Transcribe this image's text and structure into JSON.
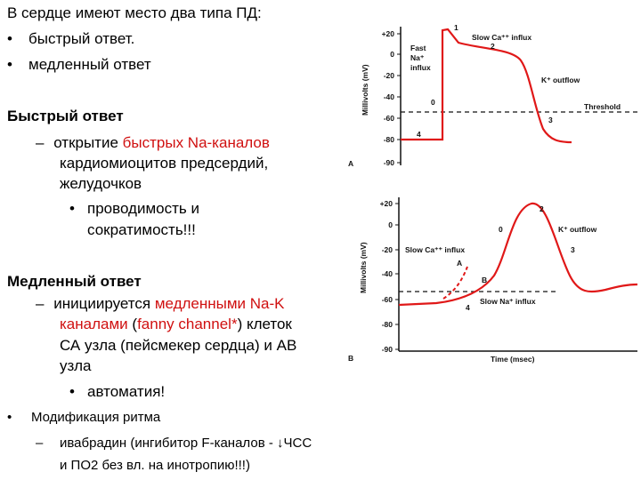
{
  "intro": {
    "title": "В сердце имеют место два типа ПД:",
    "items": [
      "быстрый ответ.",
      "медленный ответ"
    ]
  },
  "fast": {
    "heading": "Быстрый ответ",
    "dash_parts": [
      "открытие",
      "быстрых Na-каналов"
    ],
    "dash_lines": [
      "кардиомиоцитов предсердий,",
      "желудочков"
    ],
    "sub": [
      "проводимость и",
      "сократимость!!!"
    ]
  },
  "slow": {
    "heading": "Медленный ответ",
    "dash_parts": [
      "инициируется",
      "медленными Na-K",
      "каналами",
      "(",
      "fanny channel*",
      ") клеток"
    ],
    "dash_lines": [
      "СА узла (пейсмекер сердца) и АВ",
      "узла"
    ],
    "sub": "автоматия!"
  },
  "modification": {
    "title": "Модификация ритма",
    "lines": [
      "ивабрадин (ингибитор F-каналов - ↓ЧСС",
      "и ПО2 без вл. на инотропию!!!)"
    ]
  },
  "figure_a": {
    "panel": "A",
    "y_axis": "Millivolts (mV)",
    "yticks": [
      "+20",
      "0",
      "-20",
      "-40",
      "-60",
      "-80",
      "-90"
    ],
    "labels": {
      "fast_na_1": "Fast",
      "fast_na_2": "Na⁺",
      "fast_na_3": "influx",
      "slow_ca": "Slow Ca⁺⁺ influx",
      "k_out": "K⁺ outflow",
      "threshold": "Threshold",
      "p0": "0",
      "p1": "1",
      "p2": "2",
      "p3": "3",
      "p4": "4"
    }
  },
  "figure_b": {
    "panel": "B",
    "y_axis": "Millivolts (mV)",
    "x_axis": "Time (msec)",
    "yticks": [
      "+20",
      "0",
      "-20",
      "-40",
      "-60",
      "-80",
      "-90"
    ],
    "labels": {
      "slow_ca": "Slow Ca⁺⁺ influx",
      "k_out": "K⁺ outflow",
      "slow_na": "Slow Na⁺ influx",
      "a": "A",
      "b": "B",
      "p0": "0",
      "p2": "2",
      "p3": "3",
      "p4": "4"
    }
  }
}
